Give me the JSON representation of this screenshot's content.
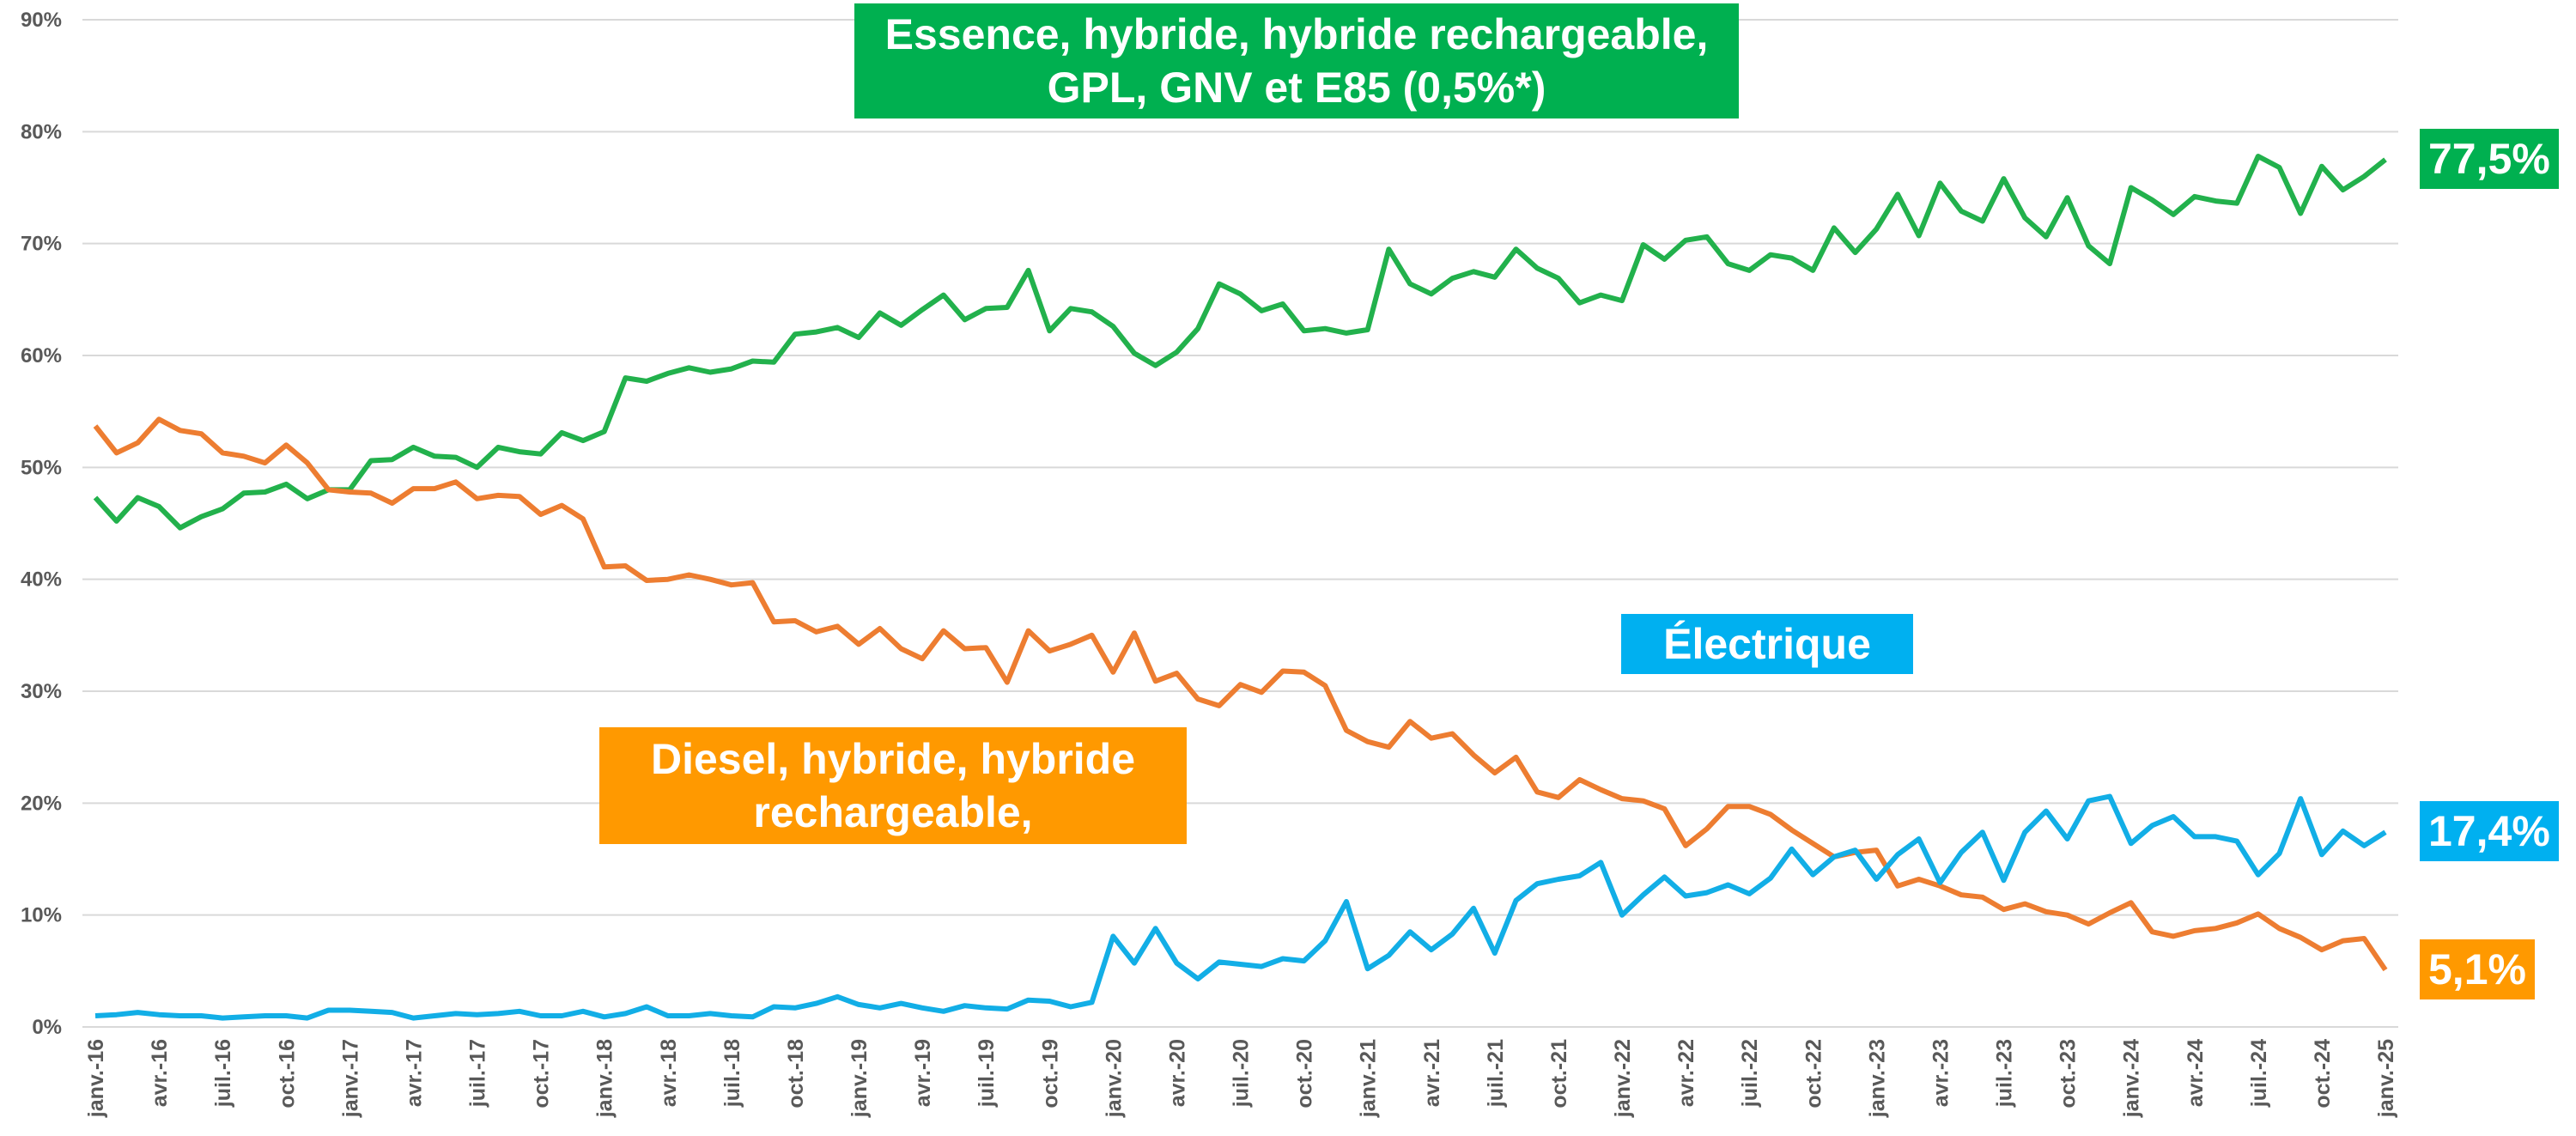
{
  "chart_data": {
    "type": "line",
    "categories": [
      "janv.-16",
      null,
      null,
      "avr.-16",
      null,
      null,
      "juil.-16",
      null,
      null,
      "oct.-16",
      null,
      null,
      "janv.-17",
      null,
      null,
      "avr.-17",
      null,
      null,
      "juil.-17",
      null,
      null,
      "oct.-17",
      null,
      null,
      "janv.-18",
      null,
      null,
      "avr.-18",
      null,
      null,
      "juil.-18",
      null,
      null,
      "oct.-18",
      null,
      null,
      "janv.-19",
      null,
      null,
      "avr.-19",
      null,
      null,
      "juil.-19",
      null,
      null,
      "oct.-19",
      null,
      null,
      "janv.-20",
      null,
      null,
      "avr.-20",
      null,
      null,
      "juil.-20",
      null,
      null,
      "oct.-20",
      null,
      null,
      "janv.-21",
      null,
      null,
      "avr.-21",
      null,
      null,
      "juil.-21",
      null,
      null,
      "oct.-21",
      null,
      null,
      "janv.-22",
      null,
      null,
      "avr.-22",
      null,
      null,
      "juil.-22",
      null,
      null,
      "oct.-22",
      null,
      null,
      "janv.-23",
      null,
      null,
      "avr.-23",
      null,
      null,
      "juil.-23",
      null,
      null,
      "oct.-23",
      null,
      null,
      "janv.-24",
      null,
      null,
      "avr.-24",
      null,
      null,
      "juil.-24",
      null,
      null,
      "oct.-24",
      null,
      null,
      "janv.-25"
    ],
    "series": [
      {
        "name": "Essence, hybride, hybride rechargeable, GPL, GNV et E85 (0,5%*)",
        "color": "#22b14c",
        "end_label": "77,5%",
        "values": [
          47.3,
          45.2,
          47.3,
          46.5,
          44.6,
          45.6,
          46.3,
          47.7,
          47.8,
          48.5,
          47.2,
          48.0,
          48.0,
          50.6,
          50.7,
          51.8,
          51.0,
          50.9,
          50.0,
          51.8,
          51.4,
          51.2,
          53.1,
          52.4,
          53.2,
          58.0,
          57.7,
          58.4,
          58.9,
          58.5,
          58.8,
          59.5,
          59.4,
          61.9,
          62.1,
          62.5,
          61.6,
          63.8,
          62.7,
          64.1,
          65.4,
          63.2,
          64.2,
          64.3,
          67.6,
          62.2,
          64.2,
          63.9,
          62.6,
          60.2,
          59.1,
          60.3,
          62.4,
          66.4,
          65.5,
          64.0,
          64.6,
          62.2,
          62.4,
          62.0,
          62.3,
          69.5,
          66.4,
          65.5,
          66.9,
          67.5,
          67.0,
          69.5,
          67.8,
          66.9,
          64.7,
          65.4,
          64.9,
          69.9,
          68.6,
          70.3,
          70.6,
          68.2,
          67.6,
          69.0,
          68.7,
          67.6,
          71.4,
          69.2,
          71.3,
          74.4,
          70.7,
          75.4,
          72.9,
          72.0,
          75.8,
          72.3,
          70.6,
          74.1,
          69.8,
          68.2,
          75.0,
          73.9,
          72.6,
          74.2,
          73.8,
          73.6,
          77.8,
          76.8,
          72.7,
          76.9,
          74.8,
          76.0,
          77.5
        ]
      },
      {
        "name": "Diesel, hybride, hybride rechargeable,",
        "color": "#ed7d31",
        "box_color": "#ff9900",
        "end_label": "5,1%",
        "values": [
          53.7,
          51.3,
          52.2,
          54.3,
          53.3,
          53.0,
          51.3,
          51.0,
          50.4,
          52.0,
          50.4,
          48.0,
          47.8,
          47.7,
          46.8,
          48.1,
          48.1,
          48.7,
          47.2,
          47.5,
          47.4,
          45.8,
          46.6,
          45.4,
          41.1,
          41.2,
          39.9,
          40.0,
          40.4,
          40.0,
          39.5,
          39.7,
          36.2,
          36.3,
          35.3,
          35.8,
          34.2,
          35.6,
          33.8,
          32.9,
          35.4,
          33.8,
          33.9,
          30.8,
          35.4,
          33.6,
          34.2,
          35.0,
          31.7,
          35.2,
          30.9,
          31.6,
          29.3,
          28.7,
          30.6,
          29.9,
          31.8,
          31.7,
          30.5,
          26.5,
          25.5,
          25.0,
          27.3,
          25.8,
          26.2,
          24.3,
          22.7,
          24.1,
          21.0,
          20.5,
          22.1,
          21.2,
          20.4,
          20.2,
          19.5,
          16.2,
          17.7,
          19.7,
          19.7,
          19.0,
          17.6,
          16.4,
          15.2,
          15.6,
          15.8,
          12.6,
          13.2,
          12.6,
          11.8,
          11.6,
          10.5,
          11.0,
          10.3,
          10.0,
          9.2,
          10.2,
          11.1,
          8.5,
          8.1,
          8.6,
          8.8,
          9.3,
          10.1,
          8.8,
          8.0,
          6.9,
          7.7,
          7.9,
          5.1
        ]
      },
      {
        "name": "Électrique",
        "color": "#12aee6",
        "box_color": "#00b0f0",
        "end_label": "17,4%",
        "values": [
          1.0,
          1.1,
          1.3,
          1.1,
          1.0,
          1.0,
          0.8,
          0.9,
          1.0,
          1.0,
          0.8,
          1.5,
          1.5,
          1.4,
          1.3,
          0.8,
          1.0,
          1.2,
          1.1,
          1.2,
          1.4,
          1.0,
          1.0,
          1.4,
          0.9,
          1.2,
          1.8,
          1.0,
          1.0,
          1.2,
          1.0,
          0.9,
          1.8,
          1.7,
          2.1,
          2.7,
          2.0,
          1.7,
          2.1,
          1.7,
          1.4,
          1.9,
          1.7,
          1.6,
          2.4,
          2.3,
          1.8,
          2.2,
          8.1,
          5.7,
          8.8,
          5.7,
          4.3,
          5.8,
          5.6,
          5.4,
          6.1,
          5.9,
          7.7,
          11.2,
          5.2,
          6.4,
          8.5,
          6.9,
          8.3,
          10.6,
          6.6,
          11.3,
          12.8,
          13.2,
          13.5,
          14.7,
          10.0,
          11.8,
          13.4,
          11.7,
          12.0,
          12.7,
          11.9,
          13.3,
          15.9,
          13.6,
          15.2,
          15.8,
          13.2,
          15.4,
          16.8,
          12.9,
          15.6,
          17.4,
          13.1,
          17.4,
          19.3,
          16.8,
          20.2,
          20.6,
          16.4,
          18.0,
          18.8,
          17.0,
          17.0,
          16.6,
          13.6,
          15.5,
          20.4,
          15.4,
          17.5,
          16.2,
          17.4
        ]
      }
    ],
    "box_colors": [
      "#00b050",
      "#ff9900",
      "#00b0f0"
    ],
    "ylim": [
      0,
      90
    ],
    "yticks": [
      {
        "value": 0,
        "label": "0%"
      },
      {
        "value": 10,
        "label": "10%"
      },
      {
        "value": 20,
        "label": "20%"
      },
      {
        "value": 30,
        "label": "30%"
      },
      {
        "value": 40,
        "label": "40%"
      },
      {
        "value": 50,
        "label": "50%"
      },
      {
        "value": 60,
        "label": "60%"
      },
      {
        "value": 70,
        "label": "70%"
      },
      {
        "value": 80,
        "label": "80%"
      },
      {
        "value": 90,
        "label": "90%"
      }
    ],
    "grid": true
  }
}
